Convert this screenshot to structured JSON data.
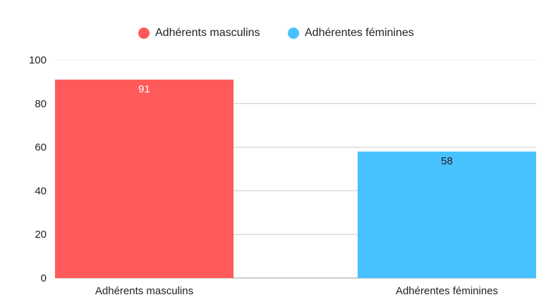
{
  "chart_data": {
    "type": "bar",
    "categories": [
      "Adhérents masculins",
      "Adhérentes féminines"
    ],
    "values": [
      91,
      58
    ],
    "colors": [
      "#ff5a5a",
      "#48c1ff"
    ],
    "label_colors": [
      "#ffffff",
      "#222222"
    ],
    "series": [
      {
        "name": "Adhérents masculins",
        "values": [
          91,
          null
        ],
        "color": "#ff5a5a"
      },
      {
        "name": "Adhérentes féminines",
        "values": [
          null,
          58
        ],
        "color": "#48c1ff"
      }
    ],
    "title": "",
    "xlabel": "",
    "ylabel": "",
    "ylim": [
      0,
      100
    ],
    "yticks": [
      "0",
      "20",
      "40",
      "60",
      "80",
      "100"
    ],
    "grid": true,
    "legend_position": "top-center"
  }
}
